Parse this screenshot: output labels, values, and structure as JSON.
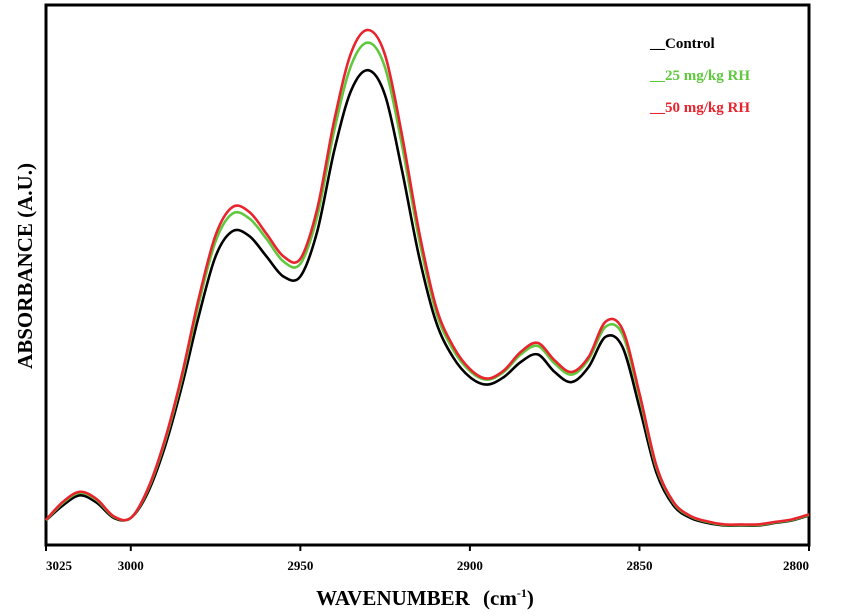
{
  "chart_data": {
    "type": "line",
    "title": "",
    "xlabel": "WAVENUMBER",
    "xlabel_unit_base": "cm",
    "xlabel_unit_exp": "-1",
    "ylabel": "ABSORBANCE (A.U.)",
    "xlim": [
      3025,
      2800
    ],
    "ylim": [
      0,
      1
    ],
    "x_reversed": true,
    "xticks": [
      3025,
      3000,
      2950,
      2900,
      2850,
      2800
    ],
    "xtick_labels": [
      "3025",
      "3000",
      "2950",
      "2900",
      "2850",
      "2800"
    ],
    "grid": false,
    "legend_position": "top-right",
    "x": [
      3025,
      3020,
      3015,
      3010,
      3005,
      3000,
      2995,
      2990,
      2985,
      2980,
      2975,
      2970,
      2965,
      2960,
      2955,
      2950,
      2945,
      2940,
      2935,
      2930,
      2925,
      2920,
      2915,
      2910,
      2905,
      2900,
      2895,
      2890,
      2885,
      2880,
      2875,
      2870,
      2865,
      2860,
      2855,
      2850,
      2845,
      2840,
      2835,
      2830,
      2825,
      2820,
      2815,
      2810,
      2805,
      2800
    ],
    "series": [
      {
        "name": "Control",
        "color": "#000000",
        "values": [
          0.025,
          0.055,
          0.075,
          0.06,
          0.03,
          0.03,
          0.08,
          0.17,
          0.29,
          0.43,
          0.55,
          0.6,
          0.59,
          0.55,
          0.51,
          0.51,
          0.6,
          0.76,
          0.88,
          0.92,
          0.87,
          0.72,
          0.55,
          0.42,
          0.35,
          0.31,
          0.295,
          0.31,
          0.34,
          0.355,
          0.32,
          0.3,
          0.33,
          0.39,
          0.37,
          0.25,
          0.12,
          0.055,
          0.03,
          0.02,
          0.015,
          0.015,
          0.015,
          0.02,
          0.025,
          0.035
        ]
      },
      {
        "name": "25 mg/kg RH",
        "color": "#5fc83c",
        "values": [
          0.025,
          0.06,
          0.08,
          0.065,
          0.032,
          0.03,
          0.085,
          0.18,
          0.305,
          0.455,
          0.58,
          0.635,
          0.625,
          0.585,
          0.54,
          0.535,
          0.63,
          0.8,
          0.93,
          0.975,
          0.925,
          0.77,
          0.585,
          0.44,
          0.365,
          0.322,
          0.305,
          0.32,
          0.355,
          0.372,
          0.337,
          0.315,
          0.345,
          0.41,
          0.395,
          0.27,
          0.13,
          0.06,
          0.033,
          0.022,
          0.016,
          0.016,
          0.016,
          0.021,
          0.026,
          0.036
        ]
      },
      {
        "name": "50 mg/kg RH",
        "color": "#e8242e",
        "values": [
          0.026,
          0.062,
          0.082,
          0.067,
          0.033,
          0.03,
          0.087,
          0.184,
          0.312,
          0.465,
          0.592,
          0.648,
          0.638,
          0.595,
          0.55,
          0.545,
          0.645,
          0.82,
          0.955,
          1.0,
          0.95,
          0.79,
          0.6,
          0.45,
          0.372,
          0.326,
          0.307,
          0.323,
          0.36,
          0.378,
          0.343,
          0.32,
          0.35,
          0.42,
          0.405,
          0.278,
          0.134,
          0.062,
          0.034,
          0.023,
          0.017,
          0.017,
          0.017,
          0.022,
          0.027,
          0.037
        ]
      }
    ],
    "legend": [
      {
        "prefix": "__",
        "label": "Control",
        "color": "#000000"
      },
      {
        "prefix": "__",
        "label": "25 mg/kg RH",
        "color": "#5fc83c"
      },
      {
        "prefix": "__",
        "label": "50 mg/kg RH",
        "color": "#e8242e"
      }
    ]
  }
}
